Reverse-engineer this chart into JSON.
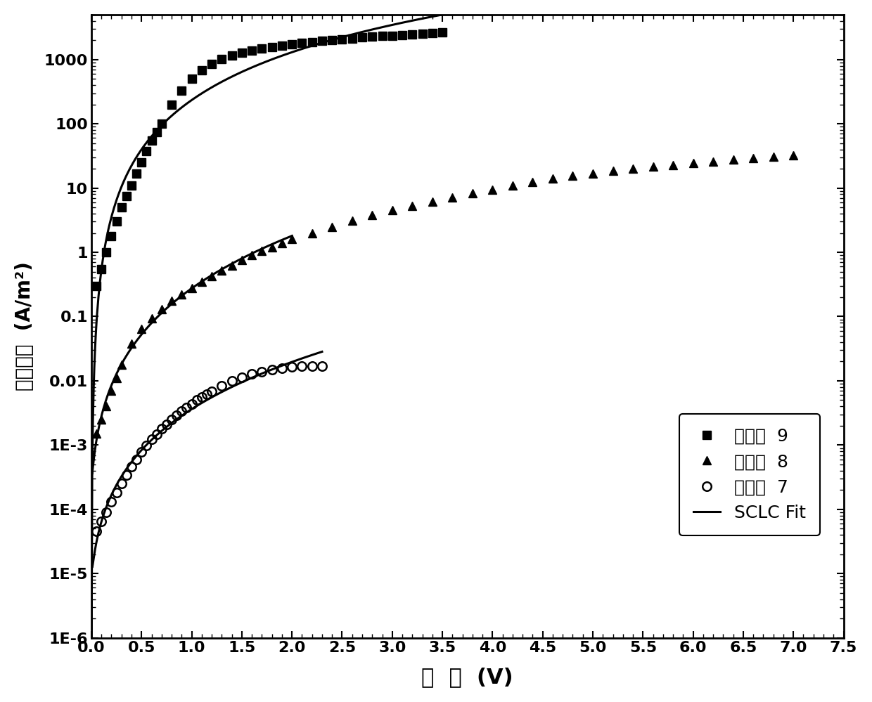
{
  "xlabel": "电  压  (V)",
  "ylabel": "电流密度  (A/m²)",
  "xlim": [
    0.0,
    7.5
  ],
  "ylim_log": [
    1e-06,
    5000
  ],
  "xticks": [
    0.0,
    0.5,
    1.0,
    1.5,
    2.0,
    2.5,
    3.0,
    3.5,
    4.0,
    4.5,
    5.0,
    5.5,
    6.0,
    6.5,
    7.0,
    7.5
  ],
  "legend_labels": [
    "实施例  9",
    "实施例  8",
    "实施例  7",
    "SCLC Fit"
  ],
  "series9_x": [
    0.05,
    0.1,
    0.15,
    0.2,
    0.25,
    0.3,
    0.35,
    0.4,
    0.45,
    0.5,
    0.55,
    0.6,
    0.65,
    0.7,
    0.8,
    0.9,
    1.0,
    1.1,
    1.2,
    1.3,
    1.4,
    1.5,
    1.6,
    1.7,
    1.8,
    1.9,
    2.0,
    2.1,
    2.2,
    2.3,
    2.4,
    2.5,
    2.6,
    2.7,
    2.8,
    2.9,
    3.0,
    3.1,
    3.2,
    3.3,
    3.4,
    3.5
  ],
  "series9_y": [
    0.3,
    0.55,
    1.0,
    1.8,
    3.0,
    5.0,
    7.5,
    11,
    17,
    25,
    38,
    55,
    75,
    100,
    200,
    330,
    500,
    680,
    860,
    1020,
    1150,
    1270,
    1380,
    1480,
    1570,
    1650,
    1730,
    1810,
    1880,
    1950,
    2020,
    2080,
    2140,
    2200,
    2260,
    2310,
    2360,
    2410,
    2460,
    2510,
    2560,
    2620
  ],
  "series8_x": [
    0.05,
    0.1,
    0.15,
    0.2,
    0.25,
    0.3,
    0.4,
    0.5,
    0.6,
    0.7,
    0.8,
    0.9,
    1.0,
    1.1,
    1.2,
    1.3,
    1.4,
    1.5,
    1.6,
    1.7,
    1.8,
    1.9,
    2.0,
    2.2,
    2.4,
    2.6,
    2.8,
    3.0,
    3.2,
    3.4,
    3.6,
    3.8,
    4.0,
    4.2,
    4.4,
    4.6,
    4.8,
    5.0,
    5.2,
    5.4,
    5.6,
    5.8,
    6.0,
    6.2,
    6.4,
    6.6,
    6.8,
    7.0
  ],
  "series8_y": [
    0.0015,
    0.0025,
    0.004,
    0.007,
    0.011,
    0.018,
    0.038,
    0.065,
    0.095,
    0.13,
    0.175,
    0.22,
    0.28,
    0.35,
    0.43,
    0.52,
    0.62,
    0.75,
    0.9,
    1.05,
    1.2,
    1.4,
    1.6,
    2.0,
    2.5,
    3.1,
    3.8,
    4.5,
    5.3,
    6.2,
    7.1,
    8.2,
    9.5,
    11.0,
    12.5,
    14.0,
    15.5,
    17.0,
    18.5,
    20.0,
    21.5,
    23.0,
    24.5,
    26.0,
    27.5,
    29.0,
    30.5,
    32.0
  ],
  "series7_x": [
    0.05,
    0.1,
    0.15,
    0.2,
    0.25,
    0.3,
    0.35,
    0.4,
    0.45,
    0.5,
    0.55,
    0.6,
    0.65,
    0.7,
    0.75,
    0.8,
    0.85,
    0.9,
    0.95,
    1.0,
    1.05,
    1.1,
    1.15,
    1.2,
    1.3,
    1.4,
    1.5,
    1.6,
    1.7,
    1.8,
    1.9,
    2.0,
    2.1,
    2.2,
    2.3
  ],
  "series7_y": [
    4.5e-05,
    6.5e-05,
    9e-05,
    0.00013,
    0.00018,
    0.00025,
    0.00034,
    0.00046,
    0.0006,
    0.00078,
    0.00098,
    0.00122,
    0.00148,
    0.00178,
    0.0021,
    0.00248,
    0.0029,
    0.00335,
    0.00385,
    0.0044,
    0.005,
    0.0056,
    0.00625,
    0.0069,
    0.0084,
    0.0099,
    0.0113,
    0.0127,
    0.0139,
    0.015,
    0.0158,
    0.0164,
    0.0168,
    0.017,
    0.0171
  ],
  "marker_color": "#000000",
  "line_color": "#000000",
  "bg_color": "#ffffff"
}
